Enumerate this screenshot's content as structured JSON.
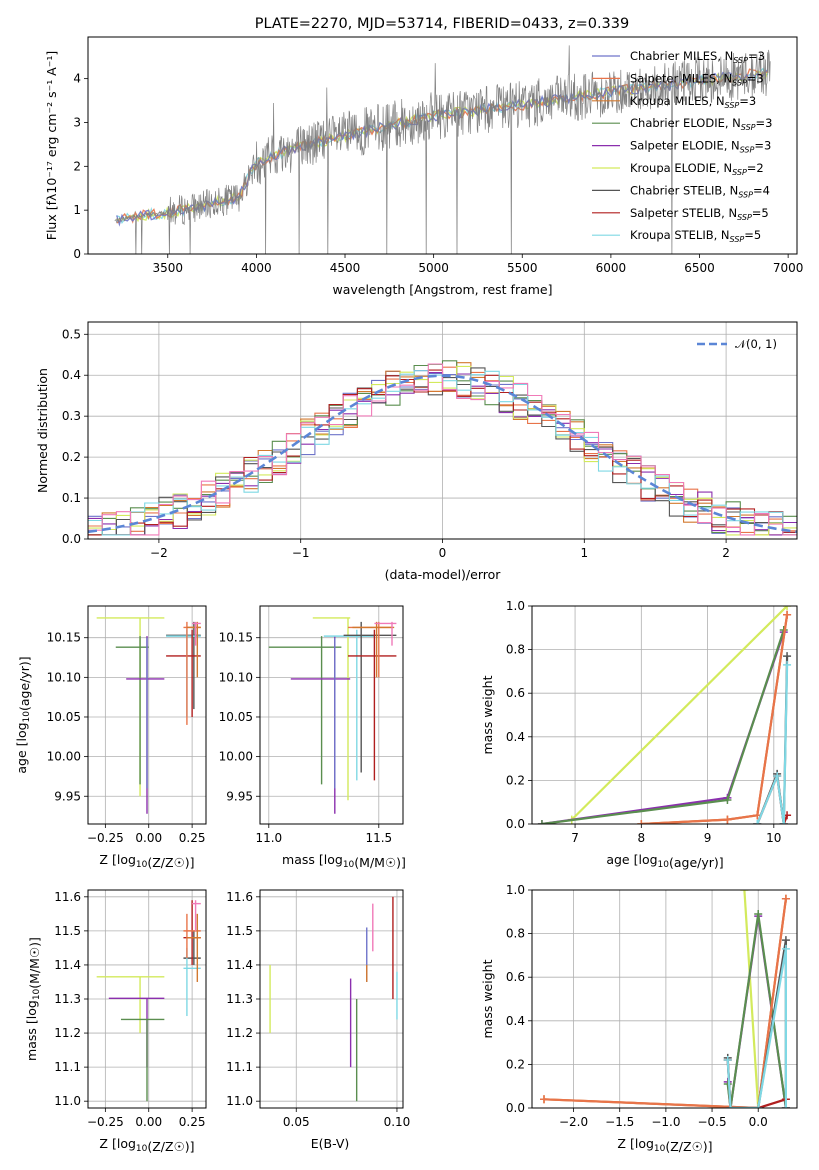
{
  "title": "PLATE=2270, MJD=53714, FIBERID=0433, z=0.339",
  "colors": {
    "Chabrier MILES": "#6f74c9",
    "Salpeter MILES": "#e8744a",
    "Kroupa MILES": "#d2792f",
    "Chabrier ELODIE": "#5a8e4f",
    "Salpeter ELODIE": "#8b2fae",
    "Kroupa ELODIE": "#d3ea5c",
    "Chabrier STELIB": "#555555",
    "Salpeter STELIB": "#b01f1f",
    "Kroupa STELIB": "#7fd8e4",
    "Pink": "#f07ab8",
    "Normal": "#5b86d6",
    "Data": "#808080"
  },
  "chart_data": [
    {
      "type": "line",
      "id": "spectrum",
      "xlabel": "wavelength [Angstrom, rest frame]",
      "ylabel": "Flux [fλ10⁻¹⁷ erg cm⁻² s⁻¹ A⁻¹]",
      "xlim": [
        3050,
        7050
      ],
      "ylim": [
        0,
        4.95
      ],
      "xticks": [
        3500,
        4000,
        4500,
        5000,
        5500,
        6000,
        6500,
        7000
      ],
      "yticks": [
        0,
        1,
        2,
        3,
        4
      ],
      "legend_position": "top-right",
      "legend": [
        {
          "base": "Chabrier MILES",
          "n": "3"
        },
        {
          "base": "Salpeter MILES",
          "n": "3"
        },
        {
          "base": "Kroupa MILES",
          "n": "3"
        },
        {
          "base": "Chabrier ELODIE",
          "n": "3"
        },
        {
          "base": "Salpeter ELODIE",
          "n": "3"
        },
        {
          "base": "Kroupa ELODIE",
          "n": "2"
        },
        {
          "base": "Chabrier STELIB",
          "n": "4"
        },
        {
          "base": "Salpeter STELIB",
          "n": "5"
        },
        {
          "base": "Kroupa STELIB",
          "n": "5"
        }
      ],
      "data_trend": {
        "x": [
          3200,
          3300,
          3500,
          3700,
          3900,
          4000,
          4200,
          4500,
          5000,
          5500,
          6000,
          6500,
          6900
        ],
        "y": [
          0.75,
          0.85,
          0.95,
          1.1,
          1.3,
          2.1,
          2.4,
          2.7,
          3.15,
          3.4,
          3.7,
          3.95,
          4.15
        ]
      }
    },
    {
      "type": "line",
      "id": "residuals",
      "xlabel": "(data-model)/error",
      "ylabel": "Normed distribution",
      "xlim": [
        -2.5,
        2.5
      ],
      "ylim": [
        0,
        0.53
      ],
      "xticks": [
        -2,
        -1,
        0,
        1,
        2
      ],
      "yticks": [
        0.0,
        0.1,
        0.2,
        0.3,
        0.4,
        0.5
      ],
      "grid": true,
      "legend_position": "top-right",
      "normal_label": "𝒩(0, 1)"
    },
    {
      "type": "scatter",
      "id": "age_vs_Z",
      "xlabel": "Z [log10(Z/Z☉)]",
      "ylabel": "age  [log10(age/yr)]",
      "xlim": [
        -0.35,
        0.33
      ],
      "ylim": [
        9.915,
        10.19
      ],
      "xticks": [
        -0.25,
        0.0,
        0.25
      ],
      "yticks": [
        9.95,
        10.0,
        10.05,
        10.1,
        10.15
      ],
      "grid": true,
      "points": [
        {
          "model": "Kroupa ELODIE",
          "x": -0.05,
          "xe": [
            -0.3,
            0.09
          ],
          "y": 10.175,
          "ye": [
            9.95,
            10.175
          ]
        },
        {
          "model": "Chabrier ELODIE",
          "x": -0.05,
          "xe": [
            -0.19,
            0.0
          ],
          "y": 10.138,
          "ye": [
            9.965,
            10.152
          ]
        },
        {
          "model": "Salpeter ELODIE",
          "x": -0.01,
          "xe": [
            -0.13,
            0.09
          ],
          "y": 10.098,
          "ye": [
            9.928,
            10.152
          ]
        },
        {
          "model": "Chabrier MILES",
          "x": -0.01,
          "xe": [
            -0.01,
            -0.01
          ],
          "y": 10.1,
          "ye": [
            9.96,
            10.15
          ]
        },
        {
          "model": "Chabrier STELIB",
          "x": 0.26,
          "xe": [
            0.1,
            0.3
          ],
          "y": 10.153,
          "ye": [
            10.06,
            10.17
          ]
        },
        {
          "model": "Kroupa STELIB",
          "x": 0.22,
          "xe": [
            0.1,
            0.3
          ],
          "y": 10.152,
          "ye": [
            10.05,
            10.16
          ]
        },
        {
          "model": "Salpeter STELIB",
          "x": 0.25,
          "xe": [
            0.1,
            0.3
          ],
          "y": 10.127,
          "ye": [
            10.05,
            10.16
          ]
        },
        {
          "model": "Salpeter MILES",
          "x": 0.22,
          "xe": [
            0.2,
            0.3
          ],
          "y": 10.163,
          "ye": [
            10.04,
            10.17
          ]
        },
        {
          "model": "Kroupa MILES",
          "x": 0.28,
          "xe": [
            0.22,
            0.3
          ],
          "y": 10.163,
          "ye": [
            10.1,
            10.17
          ]
        },
        {
          "model": "Pink",
          "x": 0.27,
          "xe": [
            0.25,
            0.3
          ],
          "y": 10.168,
          "ye": [
            10.14,
            10.17
          ]
        }
      ]
    },
    {
      "type": "scatter",
      "id": "age_vs_mass",
      "xlabel": "mass [log10(M/M☉)]",
      "ylabel": "",
      "xlim": [
        10.96,
        11.61
      ],
      "ylim": [
        9.915,
        10.19
      ],
      "xticks": [
        11.0,
        11.5
      ],
      "yticks": [
        9.95,
        10.0,
        10.05,
        10.1,
        10.15
      ],
      "grid": true,
      "points": [
        {
          "model": "Kroupa ELODIE",
          "x": 11.36,
          "xe": [
            11.2,
            11.37
          ],
          "y": 10.175,
          "ye": [
            9.945,
            10.175
          ]
        },
        {
          "model": "Chabrier ELODIE",
          "x": 11.24,
          "xe": [
            11.0,
            11.33
          ],
          "y": 10.138,
          "ye": [
            9.965,
            10.152
          ]
        },
        {
          "model": "Salpeter ELODIE",
          "x": 11.3,
          "xe": [
            11.1,
            11.37
          ],
          "y": 10.098,
          "ye": [
            9.928,
            10.152
          ]
        },
        {
          "model": "Chabrier MILES",
          "x": 11.3,
          "xe": [
            11.3,
            11.3
          ],
          "y": 10.1,
          "ye": [
            9.96,
            10.15
          ]
        },
        {
          "model": "Kroupa STELIB",
          "x": 11.4,
          "xe": [
            11.25,
            11.48
          ],
          "y": 10.152,
          "ye": [
            9.97,
            10.16
          ]
        },
        {
          "model": "Chabrier STELIB",
          "x": 11.42,
          "xe": [
            11.34,
            11.58
          ],
          "y": 10.153,
          "ye": [
            9.98,
            10.17
          ]
        },
        {
          "model": "Salpeter STELIB",
          "x": 11.48,
          "xe": [
            11.36,
            11.58
          ],
          "y": 10.127,
          "ye": [
            9.97,
            10.16
          ]
        },
        {
          "model": "Salpeter MILES",
          "x": 11.5,
          "xe": [
            11.36,
            11.56
          ],
          "y": 10.163,
          "ye": [
            10.1,
            10.17
          ]
        },
        {
          "model": "Kroupa MILES",
          "x": 11.49,
          "xe": [
            11.38,
            11.57
          ],
          "y": 10.163,
          "ye": [
            10.1,
            10.17
          ]
        },
        {
          "model": "Pink",
          "x": 11.56,
          "xe": [
            11.48,
            11.58
          ],
          "y": 10.168,
          "ye": [
            10.14,
            10.17
          ]
        }
      ]
    },
    {
      "type": "line",
      "id": "mass_weight_vs_age",
      "xlabel": "age  [log10(age/yr)]",
      "ylabel": "mass weight",
      "xlim": [
        6.35,
        10.35
      ],
      "ylim": [
        0,
        1.0
      ],
      "xticks": [
        7,
        8,
        9,
        10
      ],
      "yticks": [
        0.0,
        0.2,
        0.4,
        0.6,
        0.8,
        1.0
      ],
      "grid": true,
      "series": [
        {
          "model": "Kroupa ELODIE",
          "x": [
            6.95,
            10.2
          ],
          "y": [
            0.02,
            1.0
          ]
        },
        {
          "model": "Salpeter ELODIE",
          "x": [
            6.5,
            9.3,
            10.15
          ],
          "y": [
            0.0,
            0.12,
            0.88
          ]
        },
        {
          "model": "Chabrier ELODIE",
          "x": [
            6.5,
            9.3,
            10.15
          ],
          "y": [
            0.0,
            0.11,
            0.89
          ]
        },
        {
          "model": "Kroupa MILES",
          "x": [
            8.0,
            9.3,
            9.75,
            10.2
          ],
          "y": [
            0.0,
            0.02,
            0.04,
            0.96
          ]
        },
        {
          "model": "Salpeter MILES",
          "x": [
            8.0,
            9.3,
            9.75,
            10.2
          ],
          "y": [
            0.0,
            0.02,
            0.04,
            0.96
          ]
        },
        {
          "model": "Chabrier STELIB",
          "x": [
            9.75,
            10.05,
            10.15,
            10.2
          ],
          "y": [
            0.0,
            0.23,
            0.0,
            0.77
          ]
        },
        {
          "model": "Salpeter STELIB",
          "x": [
            9.75,
            10.05,
            10.15,
            10.2
          ],
          "y": [
            0.0,
            0.22,
            0.0,
            0.04
          ]
        },
        {
          "model": "Kroupa STELIB",
          "x": [
            9.75,
            10.05,
            10.15,
            10.2
          ],
          "y": [
            0.0,
            0.22,
            0.0,
            0.73
          ]
        }
      ]
    },
    {
      "type": "scatter",
      "id": "mass_vs_Z",
      "xlabel": "Z [log10(Z/Z☉)]",
      "ylabel": "mass [log10(M/M☉)]",
      "xlim": [
        -0.35,
        0.33
      ],
      "ylim": [
        10.98,
        11.62
      ],
      "xticks": [
        -0.25,
        0.0,
        0.25
      ],
      "yticks": [
        11.0,
        11.1,
        11.2,
        11.3,
        11.4,
        11.5,
        11.6
      ],
      "grid": true,
      "points": [
        {
          "model": "Kroupa ELODIE",
          "x": -0.05,
          "xe": [
            -0.3,
            0.09
          ],
          "y": 11.365,
          "ye": [
            11.2,
            11.365
          ]
        },
        {
          "model": "Salpeter ELODIE",
          "x": -0.01,
          "xe": [
            -0.23,
            0.09
          ],
          "y": 11.302,
          "ye": [
            11.1,
            11.302
          ]
        },
        {
          "model": "Chabrier ELODIE",
          "x": -0.01,
          "xe": [
            -0.16,
            0.09
          ],
          "y": 11.24,
          "ye": [
            11.0,
            11.24
          ]
        },
        {
          "model": "Chabrier STELIB",
          "x": 0.26,
          "xe": [
            0.2,
            0.3
          ],
          "y": 11.42,
          "ye": [
            11.4,
            11.5
          ]
        },
        {
          "model": "Kroupa STELIB",
          "x": 0.22,
          "xe": [
            0.2,
            0.3
          ],
          "y": 11.39,
          "ye": [
            11.25,
            11.45
          ]
        },
        {
          "model": "Salpeter STELIB",
          "x": 0.25,
          "xe": [
            0.2,
            0.3
          ],
          "y": 11.48,
          "ye": [
            11.4,
            11.59
          ]
        },
        {
          "model": "Salpeter MILES",
          "x": 0.22,
          "xe": [
            0.2,
            0.3
          ],
          "y": 11.5,
          "ye": [
            11.42,
            11.55
          ]
        },
        {
          "model": "Kroupa MILES",
          "x": 0.28,
          "xe": [
            0.22,
            0.3
          ],
          "y": 11.48,
          "ye": [
            11.35,
            11.55
          ]
        },
        {
          "model": "Pink",
          "x": 0.27,
          "xe": [
            0.25,
            0.3
          ],
          "y": 11.58,
          "ye": [
            11.5,
            11.59
          ]
        }
      ]
    },
    {
      "type": "scatter",
      "id": "mass_vs_EBV",
      "xlabel": "E(B-V)",
      "ylabel": "",
      "xlim": [
        0.032,
        0.103
      ],
      "ylim": [
        10.98,
        11.62
      ],
      "xticks": [
        0.05,
        0.1
      ],
      "yticks": [
        11.0,
        11.1,
        11.2,
        11.3,
        11.4,
        11.5,
        11.6
      ],
      "grid": true,
      "points": [
        {
          "model": "Kroupa ELODIE",
          "x": 0.037,
          "ye": [
            11.2,
            11.4
          ]
        },
        {
          "model": "Salpeter ELODIE",
          "x": 0.077,
          "ye": [
            11.1,
            11.36
          ]
        },
        {
          "model": "Chabrier ELODIE",
          "x": 0.08,
          "ye": [
            11.0,
            11.3
          ]
        },
        {
          "model": "Chabrier MILES",
          "x": 0.085,
          "ye": [
            11.35,
            11.51
          ]
        },
        {
          "model": "Pink",
          "x": 0.088,
          "ye": [
            11.44,
            11.58
          ]
        },
        {
          "model": "Kroupa MILES",
          "x": 0.085,
          "ye": [
            11.35,
            11.4
          ]
        },
        {
          "model": "Salpeter STELIB",
          "x": 0.098,
          "ye": [
            11.3,
            11.6
          ]
        },
        {
          "model": "Kroupa STELIB",
          "x": 0.1,
          "ye": [
            11.24,
            11.38
          ]
        }
      ]
    },
    {
      "type": "line",
      "id": "mass_weight_vs_Z",
      "xlabel": "Z [log10(Z/Z☉)]",
      "ylabel": "mass weight",
      "xlim": [
        -2.45,
        0.42
      ],
      "ylim": [
        0,
        1.0
      ],
      "xticks": [
        -2.0,
        -1.5,
        -1.0,
        -0.5,
        0.0
      ],
      "yticks": [
        0.0,
        0.2,
        0.4,
        0.6,
        0.8,
        1.0
      ],
      "grid": true,
      "series": [
        {
          "model": "Kroupa ELODIE",
          "x": [
            -0.15,
            0.0
          ],
          "y": [
            1.0,
            0.0
          ]
        },
        {
          "model": "Salpeter ELODIE",
          "x": [
            -0.33,
            -0.3,
            0.0,
            0.3
          ],
          "y": [
            0.12,
            0.0,
            0.88,
            0.0
          ]
        },
        {
          "model": "Chabrier ELODIE",
          "x": [
            -0.33,
            -0.3,
            0.0,
            0.3
          ],
          "y": [
            0.11,
            0.0,
            0.89,
            0.0
          ]
        },
        {
          "model": "Kroupa MILES",
          "x": [
            -2.32,
            0.0,
            0.3
          ],
          "y": [
            0.04,
            0.0,
            0.96
          ]
        },
        {
          "model": "Salpeter MILES",
          "x": [
            -2.32,
            0.0,
            0.3
          ],
          "y": [
            0.04,
            0.0,
            0.96
          ]
        },
        {
          "model": "Chabrier STELIB",
          "x": [
            -0.33,
            -0.3,
            0.0,
            0.3,
            0.3
          ],
          "y": [
            0.23,
            0.0,
            0.0,
            0.77,
            0.0
          ]
        },
        {
          "model": "Salpeter STELIB",
          "x": [
            -0.33,
            -0.3,
            0.0,
            0.3,
            0.3
          ],
          "y": [
            0.22,
            0.0,
            0.0,
            0.04,
            0.0
          ]
        },
        {
          "model": "Kroupa STELIB",
          "x": [
            -0.33,
            -0.3,
            0.0,
            0.3,
            0.3
          ],
          "y": [
            0.22,
            0.0,
            0.0,
            0.73,
            0.0
          ]
        }
      ]
    }
  ]
}
